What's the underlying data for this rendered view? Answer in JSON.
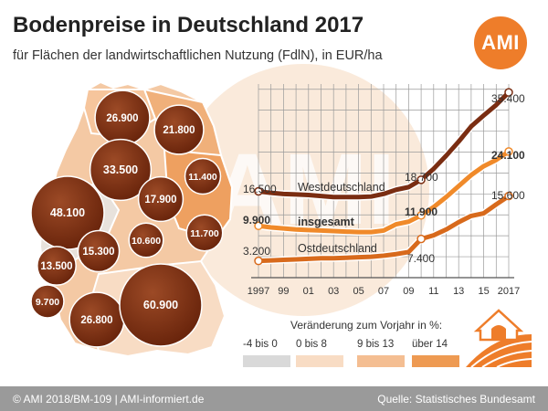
{
  "title": "Bodenpreise in Deutschland 2017",
  "subtitle": "für Flächen der landwirtschaftlichen Nutzung (FdlN), in EUR/ha",
  "logo_text": "AMI",
  "watermark_text": "AMI",
  "footer": {
    "left": "© AMI 2018/BM-109 | AMI-informiert.de",
    "right": "Quelle: Statistisches Bundesamt"
  },
  "colors": {
    "bubble": "#7a2d12",
    "west_line": "#7a2d12",
    "total_line": "#f08a2a",
    "east_line": "#d86a1c",
    "logo": "#ee7d2a",
    "footer": "#9a9a9a"
  },
  "icons": {
    "farm": "barn-icon"
  },
  "legend": {
    "title": "Veränderung zum Vorjahr in %:",
    "items": [
      {
        "label": "-4 bis 0",
        "color": "#d9d9d9"
      },
      {
        "label": "0 bis 8",
        "color": "#f8dcc4"
      },
      {
        "label": "9 bis 13",
        "color": "#f4be92"
      },
      {
        "label": "über 14",
        "color": "#ee9a52"
      }
    ]
  },
  "map_bubbles": [
    {
      "label": "26.900",
      "value": 26900
    },
    {
      "label": "21.800",
      "value": 21800
    },
    {
      "label": "33.500",
      "value": 33500
    },
    {
      "label": "11.400",
      "value": 11400
    },
    {
      "label": "17.900",
      "value": 17900
    },
    {
      "label": "48.100",
      "value": 48100
    },
    {
      "label": "10.600",
      "value": 10600
    },
    {
      "label": "11.700",
      "value": 11700
    },
    {
      "label": "15.300",
      "value": 15300
    },
    {
      "label": "13.500",
      "value": 13500
    },
    {
      "label": "9.700",
      "value": 9700
    },
    {
      "label": "26.800",
      "value": 26800
    },
    {
      "label": "60.900",
      "value": 60900
    }
  ],
  "chart_data": {
    "type": "line",
    "x": [
      1997,
      1998,
      1999,
      2000,
      2001,
      2002,
      2003,
      2004,
      2005,
      2006,
      2007,
      2008,
      2009,
      2010,
      2011,
      2012,
      2013,
      2014,
      2015,
      2016,
      2017
    ],
    "x_tick_labels": [
      "1997",
      "99",
      "01",
      "03",
      "05",
      "07",
      "09",
      "11",
      "13",
      "15",
      "2017"
    ],
    "series": [
      {
        "name": "Westdeutschland",
        "values": [
          16500,
          16200,
          16000,
          15900,
          15800,
          15600,
          15400,
          15400,
          15400,
          15500,
          16000,
          16800,
          17300,
          18700,
          20800,
          23300,
          26000,
          28900,
          31000,
          33000,
          35400
        ],
        "start_label": "16.500",
        "mid_label": "18.700",
        "end_label": "35.400"
      },
      {
        "name": "insgesamt",
        "values": [
          9900,
          9600,
          9400,
          9200,
          9100,
          9000,
          8900,
          8800,
          8700,
          8700,
          9000,
          10200,
          10700,
          11900,
          13500,
          15400,
          17500,
          19600,
          21300,
          22500,
          24100
        ],
        "start_label": "9.900",
        "mid_label": "11.900",
        "end_label": "24.100"
      },
      {
        "name": "Ostdeutschland",
        "values": [
          3200,
          3300,
          3400,
          3500,
          3600,
          3700,
          3700,
          3800,
          3900,
          4000,
          4200,
          4500,
          4900,
          7400,
          8100,
          9200,
          10600,
          11800,
          12300,
          14000,
          15600
        ],
        "start_label": "3.200",
        "mid_label": "7.400",
        "end_label": "15.600"
      }
    ],
    "ylim": [
      0,
      37000
    ],
    "grid": true
  }
}
